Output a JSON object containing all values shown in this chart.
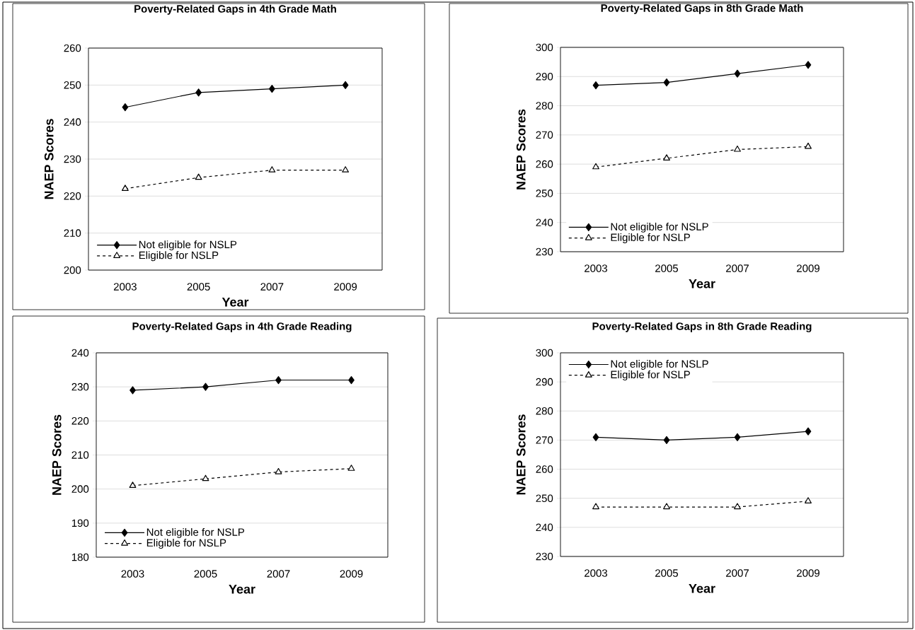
{
  "chart_data": [
    {
      "type": "line",
      "title": "Poverty-Related Gaps in 4th Grade Math",
      "xlabel": "Year",
      "ylabel": "NAEP Scores",
      "categories": [
        "2003",
        "2005",
        "2007",
        "2009"
      ],
      "ylim": [
        200,
        260
      ],
      "yticks": [
        200,
        210,
        220,
        230,
        240,
        250,
        260
      ],
      "grid": "y",
      "legend": "bottom left",
      "series": [
        {
          "name": "Not eligible for NSLP",
          "color": "#000000",
          "marker": "diamond",
          "line_style": "solid",
          "values": [
            244,
            248,
            249,
            250
          ]
        },
        {
          "name": "Eligible for NSLP",
          "color": "#000000",
          "marker": "triangle",
          "line_style": "dashed",
          "values": [
            222,
            225,
            227,
            227
          ]
        }
      ]
    },
    {
      "type": "line",
      "title": "Poverty-Related Gaps in 8th Grade Math",
      "xlabel": "Year",
      "ylabel": "NAEP Scores",
      "categories": [
        "2003",
        "2005",
        "2007",
        "2009"
      ],
      "ylim": [
        230,
        300
      ],
      "yticks": [
        230,
        240,
        250,
        260,
        270,
        280,
        290,
        300
      ],
      "grid": "y",
      "legend": "bottom left",
      "series": [
        {
          "name": "Not eligible for NSLP",
          "color": "#000000",
          "marker": "diamond",
          "line_style": "solid",
          "values": [
            287,
            288,
            291,
            294
          ]
        },
        {
          "name": "Eligible for NSLP",
          "color": "#000000",
          "marker": "triangle",
          "line_style": "dashed",
          "values": [
            259,
            262,
            265,
            266
          ]
        }
      ]
    },
    {
      "type": "line",
      "title": "Poverty-Related Gaps in 4th Grade Reading",
      "xlabel": "Year",
      "ylabel": "NAEP Scores",
      "categories": [
        "2003",
        "2005",
        "2007",
        "2009"
      ],
      "ylim": [
        180,
        240
      ],
      "yticks": [
        180,
        190,
        200,
        210,
        220,
        230,
        240
      ],
      "grid": "y",
      "legend": "bottom left",
      "series": [
        {
          "name": "Not eligible for NSLP",
          "color": "#000000",
          "marker": "diamond",
          "line_style": "solid",
          "values": [
            229,
            230,
            232,
            232
          ]
        },
        {
          "name": "Eligible for NSLP",
          "color": "#000000",
          "marker": "triangle",
          "line_style": "dashed",
          "values": [
            201,
            203,
            205,
            206
          ]
        }
      ]
    },
    {
      "type": "line",
      "title": "Poverty-Related Gaps in 8th Grade Reading",
      "xlabel": "Year",
      "ylabel": "NAEP Scores",
      "categories": [
        "2003",
        "2005",
        "2007",
        "2009"
      ],
      "ylim": [
        230,
        300
      ],
      "yticks": [
        230,
        240,
        250,
        260,
        270,
        280,
        290,
        300
      ],
      "grid": "y",
      "legend": "top left",
      "series": [
        {
          "name": "Not eligible for NSLP",
          "color": "#000000",
          "marker": "diamond",
          "line_style": "solid",
          "values": [
            271,
            270,
            271,
            273
          ]
        },
        {
          "name": "Eligible for NSLP",
          "color": "#000000",
          "marker": "triangle",
          "line_style": "dashed",
          "values": [
            247,
            247,
            247,
            249
          ]
        }
      ]
    }
  ]
}
